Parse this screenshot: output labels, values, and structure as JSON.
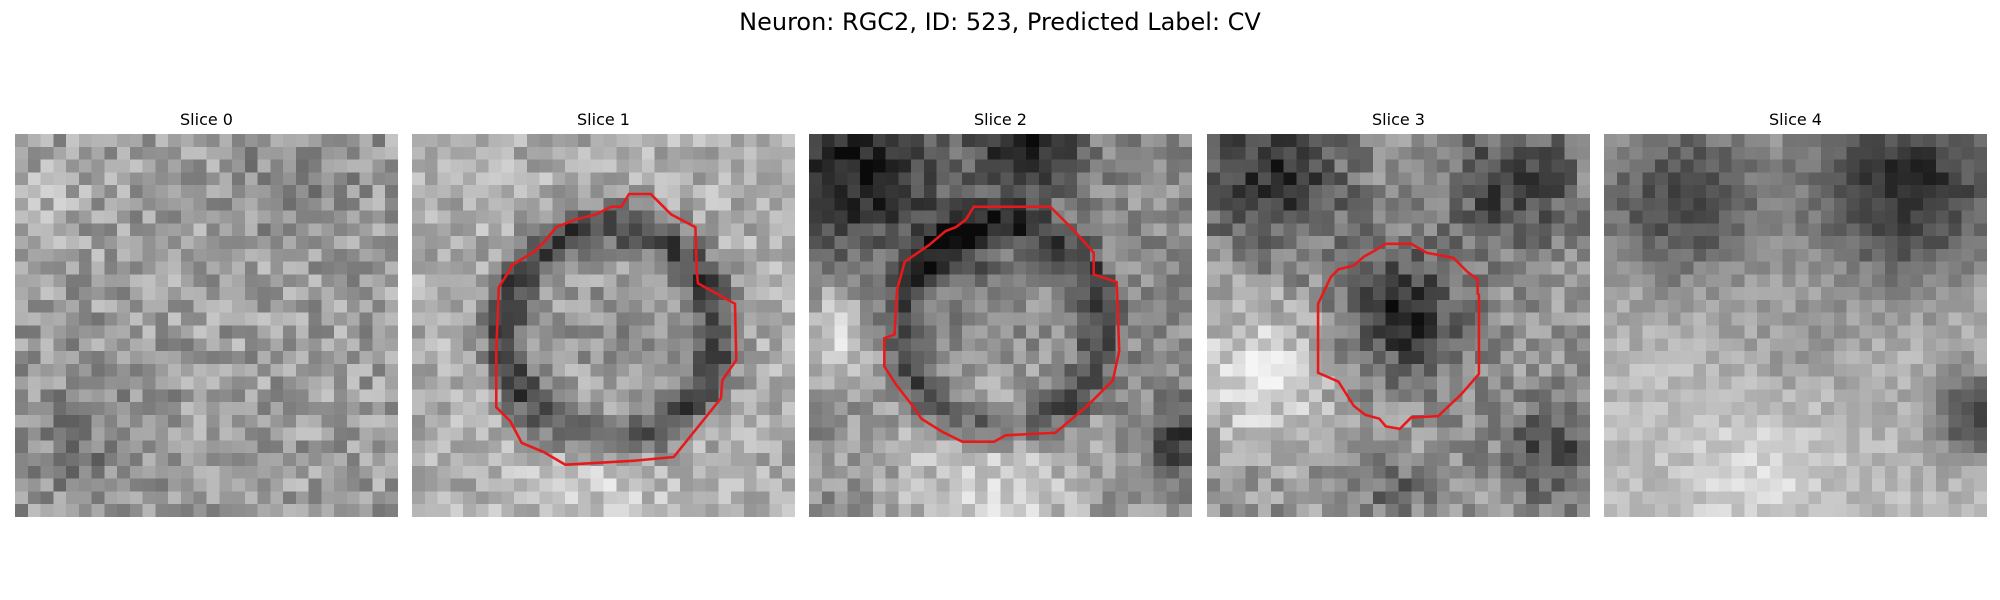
{
  "figure": {
    "title": "Neuron: RGC2, ID: 523, Predicted Label: CV"
  },
  "panels": [
    {
      "title": "Slice 0",
      "has_contour": false,
      "palette": "gray"
    },
    {
      "title": "Slice 1",
      "has_contour": true,
      "palette": "gray"
    },
    {
      "title": "Slice 2",
      "has_contour": true,
      "palette": "gray"
    },
    {
      "title": "Slice 3",
      "has_contour": true,
      "palette": "gray"
    },
    {
      "title": "Slice 4",
      "has_contour": false,
      "palette": "gray"
    }
  ],
  "colors": {
    "contour": "#e8191b",
    "background": "#ffffff"
  }
}
